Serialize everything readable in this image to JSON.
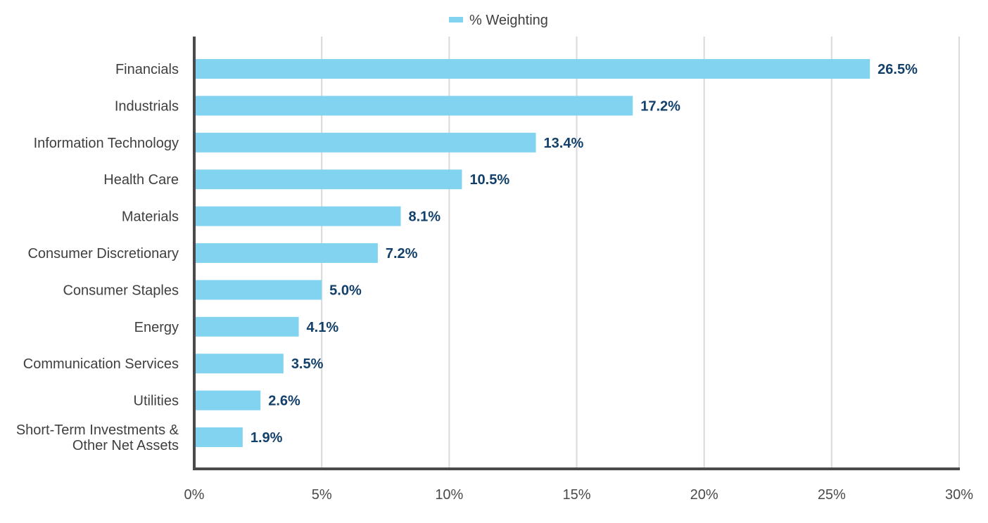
{
  "chart_data": {
    "type": "bar",
    "orientation": "horizontal",
    "categories": [
      "Financials",
      "Industrials",
      "Information Technology",
      "Health Care",
      "Materials",
      "Consumer Discretionary",
      "Consumer Staples",
      "Energy",
      "Communication Services",
      "Utilities",
      "Short-Term Investments & Other Net Assets"
    ],
    "series": [
      {
        "name": "% Weighting",
        "values": [
          26.5,
          17.2,
          13.4,
          10.5,
          8.1,
          7.2,
          5.0,
          4.1,
          3.5,
          2.6,
          1.9
        ],
        "color": "#82d3f0"
      }
    ],
    "data_labels": [
      "26.5%",
      "17.2%",
      "13.4%",
      "10.5%",
      "8.1%",
      "7.2%",
      "5.0%",
      "4.1%",
      "3.5%",
      "2.6%",
      "1.9%"
    ],
    "xlim": [
      0,
      30
    ],
    "x_ticks": [
      0,
      5,
      10,
      15,
      20,
      25,
      30
    ],
    "x_tick_labels": [
      "0%",
      "5%",
      "10%",
      "15%",
      "20%",
      "25%",
      "30%"
    ],
    "title": "",
    "xlabel": "",
    "ylabel": "",
    "grid": "vertical",
    "legend_position": "top-center"
  },
  "colors": {
    "bar": "#82d3f0",
    "data_label": "#12406a",
    "axis": "#4a4a4a",
    "grid": "#d9d9d9",
    "text": "#3f3f3f"
  }
}
